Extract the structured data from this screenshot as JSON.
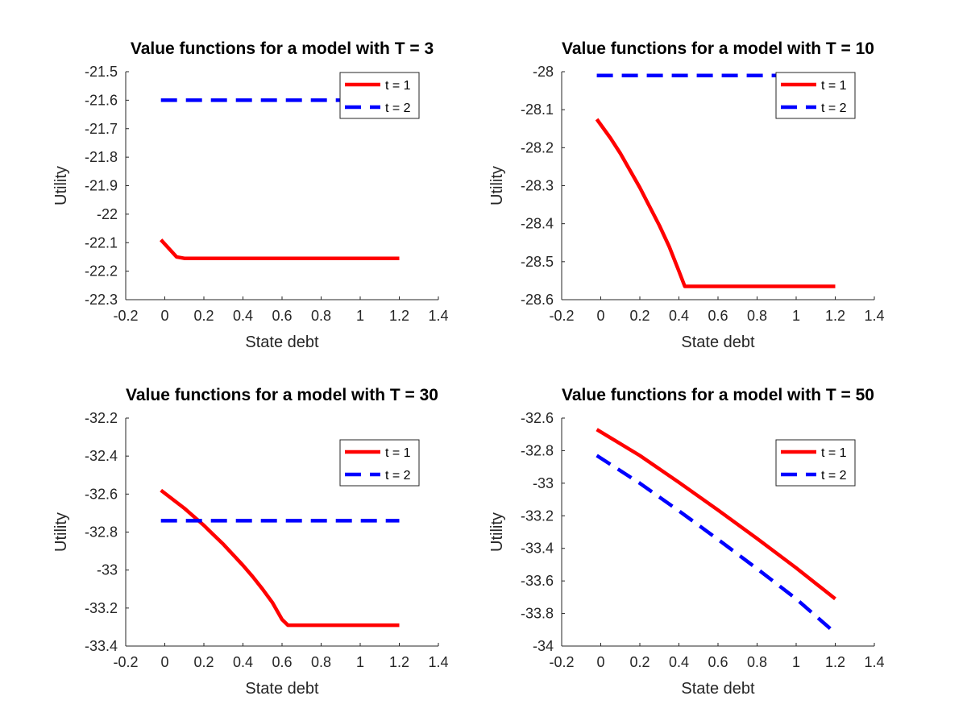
{
  "chart_data": [
    {
      "type": "line",
      "title": "Value functions for a model with T = 3",
      "xlabel": "State debt",
      "ylabel": "Utility",
      "xlim": [
        -0.2,
        1.4
      ],
      "ylim": [
        -22.3,
        -21.5
      ],
      "xticks": [
        "-0.2",
        "0",
        "0.2",
        "0.4",
        "0.6",
        "0.8",
        "1",
        "1.2",
        "1.4"
      ],
      "yticks": [
        "-21.5",
        "-21.6",
        "-21.7",
        "-21.8",
        "-21.9",
        "-22",
        "-22.1",
        "-22.2",
        "-22.3"
      ],
      "legend_position": "top-right",
      "grid": false,
      "series": [
        {
          "name": "t = 1",
          "color": "#ff0000",
          "style": "solid",
          "x": [
            -0.02,
            0.06,
            0.1,
            1.2
          ],
          "y": [
            -22.09,
            -22.15,
            -22.155,
            -22.155
          ]
        },
        {
          "name": "t = 2",
          "color": "#0000ff",
          "style": "dashed",
          "x": [
            -0.02,
            1.2
          ],
          "y": [
            -21.6,
            -21.6
          ]
        }
      ]
    },
    {
      "type": "line",
      "title": "Value functions for a model with T = 10",
      "xlabel": "State debt",
      "ylabel": "Utility",
      "xlim": [
        -0.2,
        1.4
      ],
      "ylim": [
        -28.6,
        -28.0
      ],
      "xticks": [
        "-0.2",
        "0",
        "0.2",
        "0.4",
        "0.6",
        "0.8",
        "1",
        "1.2",
        "1.4"
      ],
      "yticks": [
        "-28",
        "-28.1",
        "-28.2",
        "-28.3",
        "-28.4",
        "-28.5",
        "-28.6"
      ],
      "legend_position": "top-right",
      "grid": false,
      "series": [
        {
          "name": "t = 1",
          "color": "#ff0000",
          "style": "solid",
          "x": [
            -0.02,
            0.05,
            0.1,
            0.15,
            0.2,
            0.25,
            0.3,
            0.35,
            0.4,
            0.43,
            1.2
          ],
          "y": [
            -28.125,
            -28.175,
            -28.215,
            -28.26,
            -28.305,
            -28.355,
            -28.405,
            -28.46,
            -28.525,
            -28.565,
            -28.565
          ]
        },
        {
          "name": "t = 2",
          "color": "#0000ff",
          "style": "dashed",
          "x": [
            -0.02,
            1.2
          ],
          "y": [
            -28.01,
            -28.01
          ]
        }
      ]
    },
    {
      "type": "line",
      "title": "Value functions for a model with T = 30",
      "xlabel": "State debt",
      "ylabel": "Utility",
      "xlim": [
        -0.2,
        1.4
      ],
      "ylim": [
        -33.4,
        -32.2
      ],
      "xticks": [
        "-0.2",
        "0",
        "0.2",
        "0.4",
        "0.6",
        "0.8",
        "1",
        "1.2",
        "1.4"
      ],
      "yticks": [
        "-32.2",
        "-32.4",
        "-32.6",
        "-32.8",
        "-33",
        "-33.2",
        "-33.4"
      ],
      "legend_position": "top-right",
      "grid": false,
      "series": [
        {
          "name": "t = 1",
          "color": "#ff0000",
          "style": "solid",
          "x": [
            -0.02,
            0.05,
            0.1,
            0.15,
            0.2,
            0.25,
            0.3,
            0.35,
            0.4,
            0.45,
            0.5,
            0.55,
            0.6,
            0.63,
            1.2
          ],
          "y": [
            -32.58,
            -32.635,
            -32.675,
            -32.72,
            -32.765,
            -32.815,
            -32.865,
            -32.92,
            -32.975,
            -33.035,
            -33.1,
            -33.17,
            -33.26,
            -33.29,
            -33.29
          ]
        },
        {
          "name": "t = 2",
          "color": "#0000ff",
          "style": "dashed",
          "x": [
            -0.02,
            1.2
          ],
          "y": [
            -32.74,
            -32.74
          ]
        }
      ]
    },
    {
      "type": "line",
      "title": "Value functions for a model with T = 50",
      "xlabel": "State debt",
      "ylabel": "Utility",
      "xlim": [
        -0.2,
        1.4
      ],
      "ylim": [
        -34,
        -32.6
      ],
      "xticks": [
        "-0.2",
        "0",
        "0.2",
        "0.4",
        "0.6",
        "0.8",
        "1",
        "1.2",
        "1.4"
      ],
      "yticks": [
        "-32.6",
        "-32.8",
        "-33",
        "-33.2",
        "-33.4",
        "-33.6",
        "-33.8",
        "-34"
      ],
      "legend_position": "top-right",
      "grid": false,
      "series": [
        {
          "name": "t = 1",
          "color": "#ff0000",
          "style": "solid",
          "x": [
            -0.02,
            0.2,
            0.4,
            0.6,
            0.8,
            1.0,
            1.2
          ],
          "y": [
            -32.67,
            -32.83,
            -32.995,
            -33.165,
            -33.34,
            -33.52,
            -33.71
          ]
        },
        {
          "name": "t = 2",
          "color": "#0000ff",
          "style": "dashed",
          "x": [
            -0.02,
            0.2,
            0.4,
            0.6,
            0.8,
            1.0,
            1.2
          ],
          "y": [
            -32.83,
            -33.0,
            -33.17,
            -33.345,
            -33.525,
            -33.71,
            -33.92
          ]
        }
      ]
    }
  ]
}
